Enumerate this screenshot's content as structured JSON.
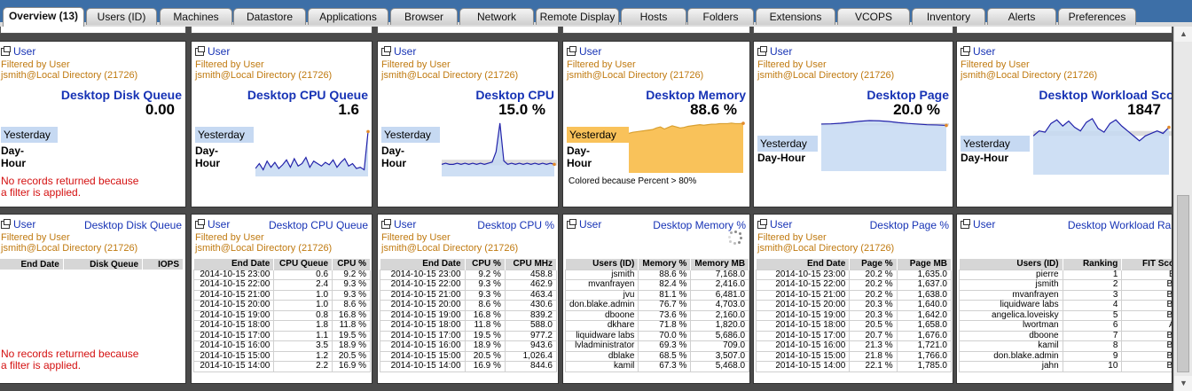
{
  "tabs": [
    "Overview (13)",
    "Users (ID)",
    "Machines",
    "Datastore",
    "Applications",
    "Browser",
    "Network",
    "Remote Display",
    "Hosts",
    "Folders",
    "Extensions",
    "VCOPS",
    "Inventory",
    "Alerts",
    "Preferences"
  ],
  "common": {
    "user_link": "User",
    "filtered_by": "Filtered by User",
    "filter_value": "jsmith@Local Directory (21726)",
    "yesterday": "Yesterday",
    "day": "Day-",
    "hour": "Hour",
    "no_records_1": "No records returned because",
    "no_records_2": "a filter is applied."
  },
  "top_panels": [
    {
      "title": "Desktop Disk Queue",
      "value": "0.00"
    },
    {
      "title": "Desktop CPU Queue",
      "value": "1.6"
    },
    {
      "title": "Desktop CPU",
      "value": "15.0 %"
    },
    {
      "title": "Desktop Memory",
      "value": "88.6 %",
      "note": "Colored because Percent > 80%"
    },
    {
      "title": "Desktop Page",
      "value": "20.0 %"
    },
    {
      "title": "Desktop Workload Scor",
      "value": "1847"
    }
  ],
  "sparklines": {
    "cpu_queue": [
      0.5,
      0.9,
      0.4,
      1.1,
      0.6,
      1.0,
      0.5,
      0.8,
      1.2,
      0.6,
      1.3,
      0.7,
      0.9,
      1.4,
      0.6,
      1.1,
      0.9,
      0.7,
      1.0,
      0.8,
      1.2,
      0.6,
      1.0,
      1.3,
      0.7,
      0.9,
      0.5,
      0.6,
      0.4,
      3.5
    ],
    "cpu_pct": [
      9,
      10,
      9,
      9,
      10,
      9,
      10,
      9,
      10,
      9,
      10,
      9,
      10,
      11,
      20,
      45,
      12,
      9,
      10,
      9,
      10,
      9,
      10,
      9,
      10,
      9,
      10,
      9,
      10,
      9
    ],
    "memory": [
      70,
      72,
      73,
      74,
      75,
      76,
      77,
      80,
      82,
      78,
      81,
      84,
      82,
      80,
      81,
      83,
      84,
      85,
      86,
      85,
      86,
      87,
      87,
      88,
      88,
      88,
      89,
      88,
      88,
      88.6
    ],
    "page": [
      20.6,
      20.7,
      21.0,
      21.4,
      21.9,
      22.2,
      22.1,
      21.8,
      21.3,
      20.9,
      20.6,
      20.3,
      20.2,
      20.0
    ],
    "workload": [
      1500,
      1700,
      1650,
      2000,
      2150,
      1900,
      2100,
      1850,
      1700,
      2050,
      2200,
      1800,
      1650,
      2000,
      2150,
      1900,
      1700,
      1500,
      1300,
      1500,
      1600,
      1700,
      1600,
      1847
    ]
  },
  "bottom_panels": {
    "disk_queue": {
      "title": "Desktop Disk Queue",
      "columns": [
        "End Date",
        "Disk Queue",
        "IOPS"
      ]
    },
    "cpu_queue": {
      "title": "Desktop CPU Queue",
      "columns": [
        "End Date",
        "CPU Queue",
        "CPU %"
      ],
      "rows": [
        [
          "2014-10-15 23:00",
          "0.6",
          "9.2 %"
        ],
        [
          "2014-10-15 22:00",
          "2.4",
          "9.3 %"
        ],
        [
          "2014-10-15 21:00",
          "1.0",
          "9.3 %"
        ],
        [
          "2014-10-15 20:00",
          "1.0",
          "8.6 %"
        ],
        [
          "2014-10-15 19:00",
          "0.8",
          "16.8 %"
        ],
        [
          "2014-10-15 18:00",
          "1.8",
          "11.8 %"
        ],
        [
          "2014-10-15 17:00",
          "1.1",
          "19.5 %"
        ],
        [
          "2014-10-15 16:00",
          "3.5",
          "18.9 %"
        ],
        [
          "2014-10-15 15:00",
          "1.2",
          "20.5 %"
        ],
        [
          "2014-10-15 14:00",
          "2.2",
          "16.9 %"
        ]
      ]
    },
    "cpu_pct": {
      "title": "Desktop CPU %",
      "columns": [
        "End Date",
        "CPU %",
        "CPU MHz"
      ],
      "rows": [
        [
          "2014-10-15 23:00",
          "9.2 %",
          "458.8"
        ],
        [
          "2014-10-15 22:00",
          "9.3 %",
          "462.9"
        ],
        [
          "2014-10-15 21:00",
          "9.3 %",
          "463.4"
        ],
        [
          "2014-10-15 20:00",
          "8.6 %",
          "430.6"
        ],
        [
          "2014-10-15 19:00",
          "16.8 %",
          "839.2"
        ],
        [
          "2014-10-15 18:00",
          "11.8 %",
          "588.0"
        ],
        [
          "2014-10-15 17:00",
          "19.5 %",
          "977.2"
        ],
        [
          "2014-10-15 16:00",
          "18.9 %",
          "943.6"
        ],
        [
          "2014-10-15 15:00",
          "20.5 %",
          "1,026.4"
        ],
        [
          "2014-10-15 14:00",
          "16.9 %",
          "844.6"
        ]
      ]
    },
    "memory": {
      "title": "Desktop Memory %",
      "columns": [
        "Users (ID)",
        "Memory %",
        "Memory MB"
      ],
      "rows": [
        [
          "jsmith",
          "88.6 %",
          "7,168.0"
        ],
        [
          "mvanfrayen",
          "82.4 %",
          "2,416.0"
        ],
        [
          "jvu",
          "81.1 %",
          "6,481.0"
        ],
        [
          "don.blake.admin",
          "76.7 %",
          "4,703.0"
        ],
        [
          "dboone",
          "73.6 %",
          "2,160.0"
        ],
        [
          "dkhare",
          "71.8 %",
          "1,820.0"
        ],
        [
          "liquidware labs",
          "70.0 %",
          "5,686.0"
        ],
        [
          "lvladministrator",
          "69.3 %",
          "709.0"
        ],
        [
          "dblake",
          "68.5 %",
          "3,507.0"
        ],
        [
          "kamil",
          "67.3 %",
          "5,468.0"
        ]
      ]
    },
    "page": {
      "title": "Desktop Page %",
      "columns": [
        "End Date",
        "Page %",
        "Page MB"
      ],
      "rows": [
        [
          "2014-10-15 23:00",
          "20.2 %",
          "1,635.0"
        ],
        [
          "2014-10-15 22:00",
          "20.2 %",
          "1,637.0"
        ],
        [
          "2014-10-15 21:00",
          "20.2 %",
          "1,638.0"
        ],
        [
          "2014-10-15 20:00",
          "20.3 %",
          "1,640.0"
        ],
        [
          "2014-10-15 19:00",
          "20.3 %",
          "1,642.0"
        ],
        [
          "2014-10-15 18:00",
          "20.5 %",
          "1,658.0"
        ],
        [
          "2014-10-15 17:00",
          "20.7 %",
          "1,676.0"
        ],
        [
          "2014-10-15 16:00",
          "21.3 %",
          "1,721.0"
        ],
        [
          "2014-10-15 15:00",
          "21.8 %",
          "1,766.0"
        ],
        [
          "2014-10-15 14:00",
          "22.1 %",
          "1,785.0"
        ]
      ]
    },
    "workload": {
      "title": "Desktop Workload Ran",
      "columns": [
        "Users (ID)",
        "Ranking",
        "FIT Scor"
      ],
      "rows": [
        [
          "pierre",
          "1",
          "B-"
        ],
        [
          "jsmith",
          "2",
          "B+"
        ],
        [
          "mvanfrayen",
          "3",
          "B+"
        ],
        [
          "liquidware labs",
          "4",
          "B+"
        ],
        [
          "angelica.loveisky",
          "5",
          "B+"
        ],
        [
          "lwortman",
          "6",
          "A-"
        ],
        [
          "dboone",
          "7",
          "B+"
        ],
        [
          "kamil",
          "8",
          "B+"
        ],
        [
          "don.blake.admin",
          "9",
          "B+"
        ],
        [
          "jahn",
          "10",
          "B+"
        ]
      ]
    }
  },
  "colors": {
    "accent": "#1733b5",
    "filter": "#c07a10",
    "error": "#d41010",
    "sparkline": "#2222aa",
    "fill": "#c6d9f2",
    "memory_alert": "#f9c25a"
  }
}
